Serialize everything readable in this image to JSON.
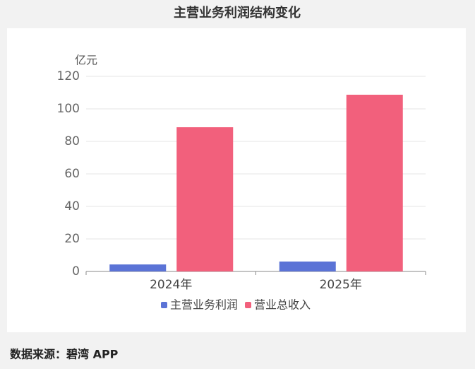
{
  "chart_data": {
    "type": "bar",
    "title": "主营业务利润结构变化",
    "y_unit": "亿元",
    "categories": [
      "2024年",
      "2025年"
    ],
    "series": [
      {
        "name": "主营业务利润",
        "color": "#5b73d6",
        "values": [
          4.3,
          6.1
        ]
      },
      {
        "name": "营业总收入",
        "color": "#f2607c",
        "values": [
          88.7,
          108.7
        ]
      }
    ],
    "ylim": [
      0,
      120
    ],
    "yticks": [
      0,
      20,
      40,
      60,
      80,
      100,
      120
    ],
    "grid": true,
    "legend": "bottom",
    "source": "数据来源：碧湾 APP"
  }
}
